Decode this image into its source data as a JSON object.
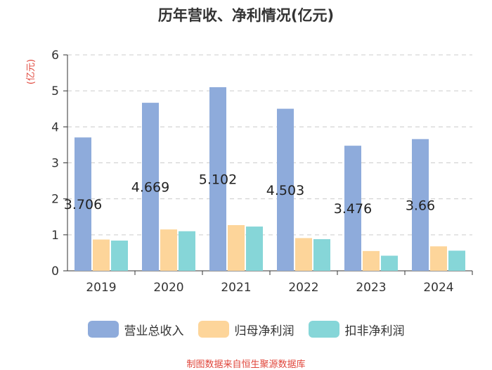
{
  "chart_data": {
    "type": "bar",
    "title": "历年营收、净利情况(亿元)",
    "ylabel": "(亿元)",
    "xlabel": "",
    "ylim": [
      0,
      6
    ],
    "yticks": [
      0,
      1,
      2,
      3,
      4,
      5,
      6
    ],
    "categories": [
      "2019",
      "2020",
      "2021",
      "2022",
      "2023",
      "2024"
    ],
    "series": [
      {
        "name": "营业总收入",
        "color": "#8eabdb",
        "values": [
          3.706,
          4.669,
          5.102,
          4.503,
          3.476,
          3.66
        ],
        "labels": [
          "3.706",
          "4.669",
          "5.102",
          "4.503",
          "3.476",
          "3.66"
        ]
      },
      {
        "name": "归母净利润",
        "color": "#fdd59a",
        "values": [
          0.87,
          1.15,
          1.27,
          0.91,
          0.55,
          0.68
        ]
      },
      {
        "name": "扣非净利润",
        "color": "#86d6d8",
        "values": [
          0.84,
          1.1,
          1.23,
          0.88,
          0.42,
          0.56
        ]
      }
    ],
    "grid": true,
    "legend_position": "bottom"
  },
  "source": "制图数据来自恒生聚源数据库"
}
